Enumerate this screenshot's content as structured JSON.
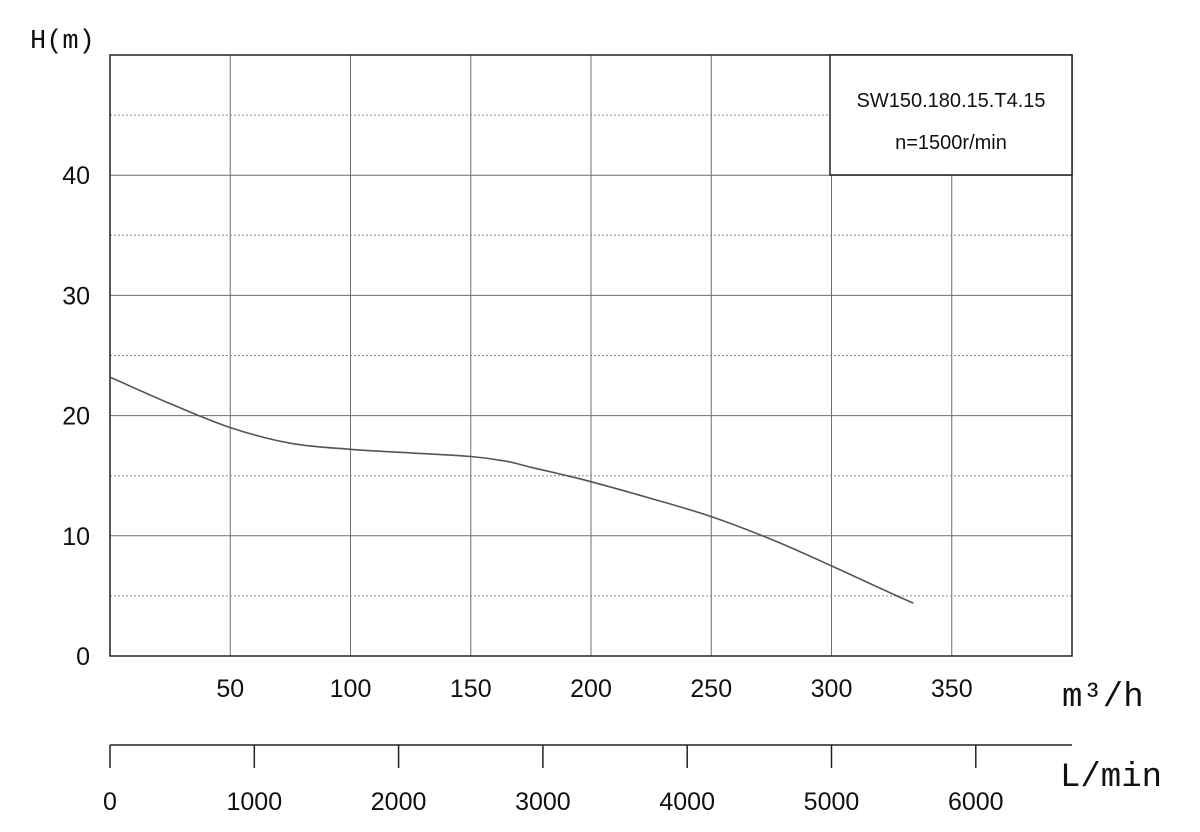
{
  "chart_data": {
    "type": "line",
    "ylabel": "H(m)",
    "xlabel": "m³/h",
    "secondary_xlabel": "L/min",
    "xlim": [
      0,
      400
    ],
    "ylim": [
      0,
      50
    ],
    "x_ticks": [
      50,
      100,
      150,
      200,
      250,
      300,
      350
    ],
    "y_ticks": [
      0,
      10,
      20,
      30,
      40
    ],
    "secondary_x_ticks": [
      0,
      1000,
      2000,
      3000,
      4000,
      5000,
      6000
    ],
    "secondary_xlim": [
      0,
      6666.7
    ],
    "grid": true,
    "legend": {
      "placement": "top-right",
      "lines": [
        "SW150.180.15.T4.15",
        "n=1500r/min"
      ]
    },
    "series": [
      {
        "x": [
          0,
          25,
          50,
          75,
          100,
          125,
          150,
          165,
          175,
          188,
          200,
          225,
          250,
          275,
          300,
          325,
          334
        ],
        "y": [
          23.2,
          21.0,
          19.0,
          17.7,
          17.2,
          16.9,
          16.6,
          16.2,
          15.7,
          15.1,
          14.5,
          13.1,
          11.6,
          9.7,
          7.5,
          5.2,
          4.4
        ]
      }
    ]
  }
}
